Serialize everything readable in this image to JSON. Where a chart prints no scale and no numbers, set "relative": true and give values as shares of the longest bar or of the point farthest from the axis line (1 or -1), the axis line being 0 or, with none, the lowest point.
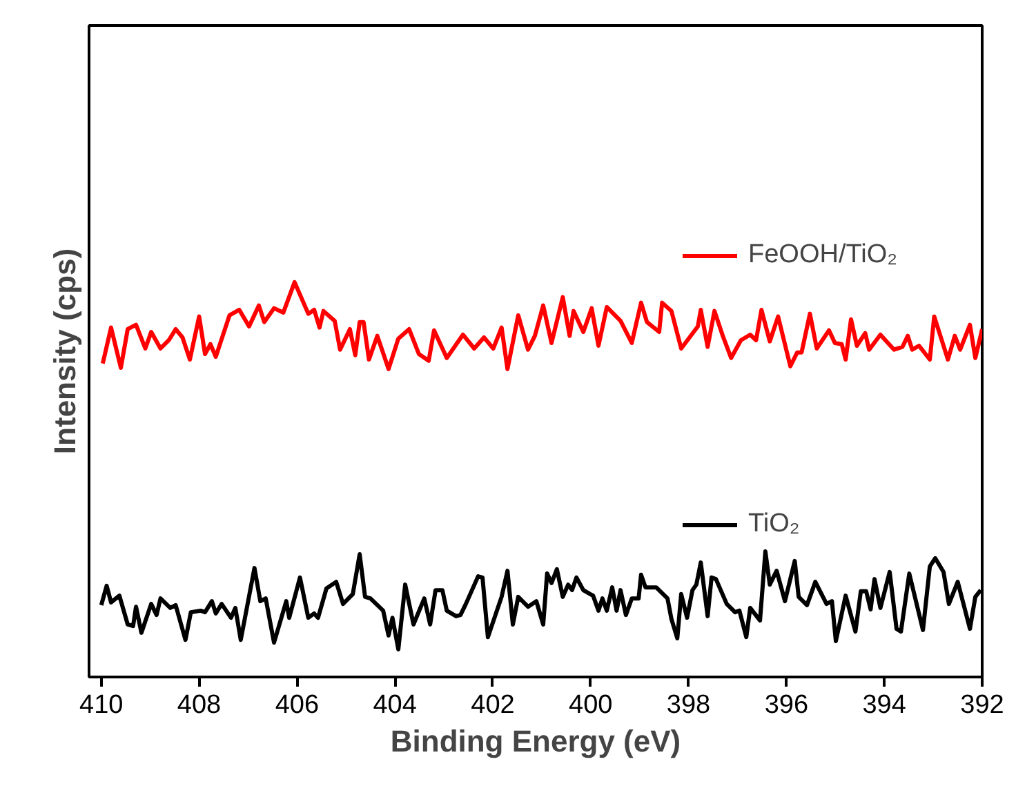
{
  "chart_data": {
    "type": "line",
    "relative": true,
    "xlabel": "Binding Energy (eV)",
    "ylabel": "Intensity (cps)",
    "xlim": [
      410.25,
      392
    ],
    "xticks": [
      410,
      408,
      406,
      404,
      402,
      400,
      398,
      396,
      394,
      392
    ],
    "tick_labels": "x",
    "grid": false,
    "legend": "right",
    "line_style": "solid",
    "marker": "none",
    "series": [
      {
        "name": "FeOOH/TiO₂",
        "color": "#ff0000",
        "x": [
          409.97,
          409.8,
          409.6,
          409.46,
          409.29,
          409.1,
          408.98,
          408.79,
          408.62,
          408.48,
          408.34,
          408.19,
          408.0,
          407.88,
          407.77,
          407.66,
          407.38,
          407.18,
          406.98,
          406.78,
          406.67,
          406.47,
          406.28,
          406.05,
          405.77,
          405.65,
          405.54,
          405.46,
          405.23,
          405.12,
          404.92,
          404.81,
          404.72,
          404.64,
          404.53,
          404.36,
          404.13,
          403.93,
          403.71,
          403.51,
          403.31,
          403.2,
          402.94,
          402.61,
          402.38,
          402.18,
          401.99,
          401.82,
          401.7,
          401.48,
          401.28,
          401.14,
          400.97,
          400.8,
          400.57,
          400.43,
          400.35,
          400.15,
          399.98,
          399.84,
          399.67,
          399.39,
          399.16,
          398.97,
          398.85,
          398.6,
          398.54,
          398.35,
          398.15,
          397.81,
          397.75,
          397.61,
          397.47,
          397.3,
          397.13,
          396.93,
          396.74,
          396.62,
          396.51,
          396.34,
          396.17,
          395.92,
          395.78,
          395.69,
          395.52,
          395.38,
          395.13,
          395.01,
          394.87,
          394.79,
          394.68,
          394.56,
          394.39,
          394.31,
          394.08,
          393.8,
          393.63,
          393.52,
          393.43,
          393.29,
          393.07,
          392.98,
          392.7,
          392.56,
          392.45,
          392.25,
          392.14,
          392.0
        ],
        "values": [
          0.794,
          0.885,
          0.783,
          0.881,
          0.892,
          0.832,
          0.874,
          0.832,
          0.853,
          0.881,
          0.86,
          0.804,
          0.913,
          0.818,
          0.843,
          0.811,
          0.916,
          0.93,
          0.888,
          0.941,
          0.899,
          0.934,
          0.923,
          1.0,
          0.92,
          0.93,
          0.885,
          0.927,
          0.902,
          0.829,
          0.881,
          0.815,
          0.899,
          0.899,
          0.804,
          0.864,
          0.78,
          0.857,
          0.881,
          0.818,
          0.801,
          0.878,
          0.808,
          0.867,
          0.832,
          0.86,
          0.832,
          0.885,
          0.78,
          0.916,
          0.829,
          0.864,
          0.941,
          0.846,
          0.962,
          0.864,
          0.927,
          0.874,
          0.934,
          0.839,
          0.937,
          0.902,
          0.846,
          0.948,
          0.899,
          0.874,
          0.948,
          0.927,
          0.832,
          0.888,
          0.93,
          0.836,
          0.927,
          0.864,
          0.808,
          0.853,
          0.867,
          0.853,
          0.93,
          0.85,
          0.913,
          0.787,
          0.822,
          0.822,
          0.92,
          0.832,
          0.878,
          0.846,
          0.843,
          0.804,
          0.906,
          0.839,
          0.871,
          0.829,
          0.867,
          0.829,
          0.836,
          0.864,
          0.829,
          0.839,
          0.804,
          0.913,
          0.804,
          0.864,
          0.829,
          0.892,
          0.808,
          0.881
        ]
      },
      {
        "name": "TiO₂",
        "color": "#000000",
        "x": [
          410.0,
          409.89,
          409.8,
          409.63,
          409.46,
          409.35,
          409.29,
          409.18,
          408.98,
          408.87,
          408.79,
          408.59,
          408.48,
          408.28,
          408.17,
          407.97,
          407.88,
          407.74,
          407.66,
          407.54,
          407.35,
          407.26,
          407.15,
          406.87,
          406.75,
          406.64,
          406.47,
          406.22,
          406.16,
          405.94,
          405.77,
          405.65,
          405.57,
          405.4,
          405.2,
          405.06,
          404.86,
          404.72,
          404.61,
          404.5,
          404.24,
          404.13,
          404.05,
          403.93,
          403.79,
          403.62,
          403.4,
          403.28,
          403.17,
          403.03,
          402.94,
          402.75,
          402.66,
          402.55,
          402.3,
          402.21,
          402.1,
          401.82,
          401.7,
          401.59,
          401.48,
          401.28,
          401.11,
          400.97,
          400.89,
          400.8,
          400.69,
          400.57,
          400.46,
          400.38,
          400.29,
          400.15,
          400.01,
          399.95,
          399.84,
          399.76,
          399.67,
          399.56,
          399.47,
          399.39,
          399.28,
          399.16,
          399.02,
          398.97,
          398.88,
          398.66,
          398.43,
          398.35,
          398.23,
          398.15,
          398.03,
          397.92,
          397.84,
          397.75,
          397.61,
          397.53,
          397.44,
          397.22,
          397.05,
          396.96,
          396.82,
          396.74,
          396.54,
          396.43,
          396.34,
          396.2,
          396.03,
          395.83,
          395.75,
          395.58,
          395.41,
          395.18,
          395.07,
          394.99,
          394.79,
          394.59,
          394.48,
          394.37,
          394.28,
          394.2,
          394.08,
          393.89,
          393.75,
          393.66,
          393.49,
          393.21,
          393.07,
          392.96,
          392.79,
          392.68,
          392.5,
          392.25,
          392.14,
          392.03
        ],
        "values": [
          0.182,
          0.231,
          0.189,
          0.206,
          0.133,
          0.129,
          0.178,
          0.112,
          0.185,
          0.157,
          0.199,
          0.175,
          0.182,
          0.094,
          0.164,
          0.168,
          0.164,
          0.192,
          0.161,
          0.185,
          0.15,
          0.175,
          0.094,
          0.276,
          0.192,
          0.199,
          0.087,
          0.192,
          0.15,
          0.252,
          0.15,
          0.161,
          0.15,
          0.224,
          0.241,
          0.185,
          0.21,
          0.311,
          0.203,
          0.199,
          0.168,
          0.105,
          0.15,
          0.07,
          0.234,
          0.133,
          0.199,
          0.133,
          0.22,
          0.22,
          0.168,
          0.154,
          0.157,
          0.185,
          0.255,
          0.252,
          0.101,
          0.203,
          0.269,
          0.133,
          0.203,
          0.178,
          0.192,
          0.133,
          0.262,
          0.238,
          0.273,
          0.203,
          0.234,
          0.22,
          0.252,
          0.22,
          0.21,
          0.206,
          0.168,
          0.199,
          0.168,
          0.227,
          0.168,
          0.22,
          0.157,
          0.199,
          0.199,
          0.259,
          0.227,
          0.227,
          0.199,
          0.147,
          0.098,
          0.21,
          0.15,
          0.22,
          0.234,
          0.29,
          0.154,
          0.252,
          0.248,
          0.185,
          0.164,
          0.168,
          0.101,
          0.175,
          0.143,
          0.318,
          0.234,
          0.269,
          0.192,
          0.294,
          0.203,
          0.182,
          0.241,
          0.185,
          0.192,
          0.091,
          0.206,
          0.115,
          0.217,
          0.217,
          0.171,
          0.248,
          0.175,
          0.266,
          0.122,
          0.115,
          0.262,
          0.119,
          0.28,
          0.301,
          0.266,
          0.185,
          0.241,
          0.122,
          0.203,
          0.22
        ]
      }
    ]
  }
}
